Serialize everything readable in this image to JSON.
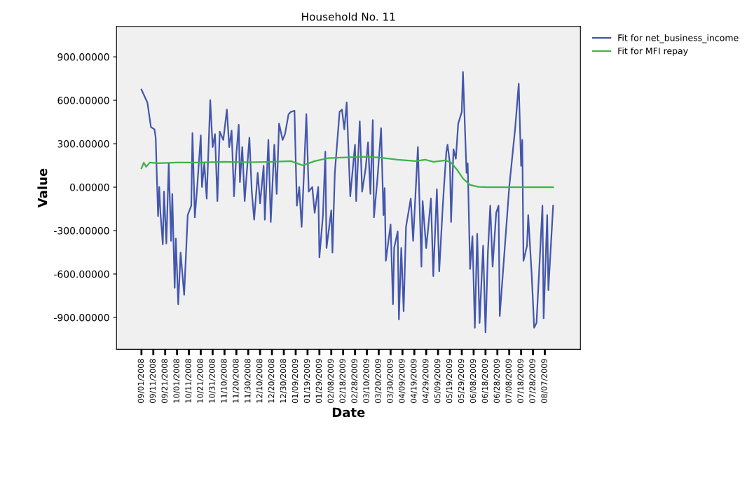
{
  "chart_data": {
    "type": "line",
    "title": "Household No. 11",
    "xlabel": "Date",
    "ylabel": "Value",
    "xlim": [
      "2008-08-11",
      "2009-09-06"
    ],
    "xticks": [
      {
        "value": "2008-09-01",
        "label": "09/01/2008"
      },
      {
        "value": "2008-09-11",
        "label": "09/11/2008"
      },
      {
        "value": "2008-09-21",
        "label": "09/21/2008"
      },
      {
        "value": "2008-10-01",
        "label": "10/01/2008"
      },
      {
        "value": "2008-10-11",
        "label": "10/11/2008"
      },
      {
        "value": "2008-10-21",
        "label": "10/21/2008"
      },
      {
        "value": "2008-10-31",
        "label": "10/31/2008"
      },
      {
        "value": "2008-11-10",
        "label": "11/10/2008"
      },
      {
        "value": "2008-11-20",
        "label": "11/20/2008"
      },
      {
        "value": "2008-11-30",
        "label": "11/30/2008"
      },
      {
        "value": "2008-12-10",
        "label": "12/10/2008"
      },
      {
        "value": "2008-12-20",
        "label": "12/20/2008"
      },
      {
        "value": "2008-12-30",
        "label": "12/30/2008"
      },
      {
        "value": "2009-01-09",
        "label": "01/09/2009"
      },
      {
        "value": "2009-01-19",
        "label": "01/19/2009"
      },
      {
        "value": "2009-01-29",
        "label": "01/29/2009"
      },
      {
        "value": "2009-02-08",
        "label": "02/08/2009"
      },
      {
        "value": "2009-02-18",
        "label": "02/18/2009"
      },
      {
        "value": "2009-02-28",
        "label": "02/28/2009"
      },
      {
        "value": "2009-03-10",
        "label": "03/10/2009"
      },
      {
        "value": "2009-03-20",
        "label": "03/20/2009"
      },
      {
        "value": "2009-03-30",
        "label": "03/30/2009"
      },
      {
        "value": "2009-04-09",
        "label": "04/09/2009"
      },
      {
        "value": "2009-04-19",
        "label": "04/19/2009"
      },
      {
        "value": "2009-04-29",
        "label": "04/29/2009"
      },
      {
        "value": "2009-05-09",
        "label": "05/09/2009"
      },
      {
        "value": "2009-05-19",
        "label": "05/19/2009"
      },
      {
        "value": "2009-05-29",
        "label": "05/29/2009"
      },
      {
        "value": "2009-06-08",
        "label": "06/08/2009"
      },
      {
        "value": "2009-06-18",
        "label": "06/18/2009"
      },
      {
        "value": "2009-06-28",
        "label": "06/28/2009"
      },
      {
        "value": "2009-07-08",
        "label": "07/08/2009"
      },
      {
        "value": "2009-07-18",
        "label": "07/18/2009"
      },
      {
        "value": "2009-07-28",
        "label": "07/28/2009"
      },
      {
        "value": "2009-08-07",
        "label": "08/07/2009"
      }
    ],
    "ylim": [
      -1120,
      1110
    ],
    "yticks": [
      {
        "value": 900,
        "label": "900.00000"
      },
      {
        "value": 600,
        "label": "600.00000"
      },
      {
        "value": 300,
        "label": "300.00000"
      },
      {
        "value": 0,
        "label": "0.00000"
      },
      {
        "value": -300,
        "label": "-300.00000"
      },
      {
        "value": -600,
        "label": "-600.00000"
      },
      {
        "value": -900,
        "label": "-900.00000"
      }
    ],
    "grid": false,
    "legend": "top right",
    "marker": "none",
    "line_style": "solid",
    "series": [
      {
        "name": "Fit for net_business_income",
        "color": "#4457ad",
        "x": [
          "2008-09-01",
          "2008-09-06",
          "2008-09-09",
          "2008-09-12",
          "2008-09-13",
          "2008-09-15",
          "2008-09-16",
          "2008-09-17",
          "2008-09-19",
          "2008-09-20",
          "2008-09-22",
          "2008-09-24",
          "2008-09-26",
          "2008-09-27",
          "2008-09-29",
          "2008-09-30",
          "2008-10-02",
          "2008-10-04",
          "2008-10-07",
          "2008-10-10",
          "2008-10-13",
          "2008-10-14",
          "2008-10-16",
          "2008-10-18",
          "2008-10-21",
          "2008-10-22",
          "2008-10-24",
          "2008-10-26",
          "2008-10-29",
          "2008-10-31",
          "2008-11-02",
          "2008-11-04",
          "2008-11-06",
          "2008-11-09",
          "2008-11-12",
          "2008-11-14",
          "2008-11-16",
          "2008-11-18",
          "2008-11-20",
          "2008-11-22",
          "2008-11-23",
          "2008-11-25",
          "2008-11-27",
          "2008-12-01",
          "2008-12-03",
          "2008-12-05",
          "2008-12-08",
          "2008-12-10",
          "2008-12-13",
          "2008-12-14",
          "2008-12-17",
          "2008-12-19",
          "2008-12-22",
          "2008-12-24",
          "2008-12-26",
          "2008-12-29",
          "2008-12-31",
          "2009-01-03",
          "2009-01-05",
          "2009-01-08",
          "2009-01-10",
          "2009-01-12",
          "2009-01-14",
          "2009-01-16",
          "2009-01-18",
          "2009-01-20",
          "2009-01-23",
          "2009-01-25",
          "2009-01-28",
          "2009-01-29",
          "2009-02-01",
          "2009-02-03",
          "2009-02-04",
          "2009-02-08",
          "2009-02-09",
          "2009-02-11",
          "2009-02-15",
          "2009-02-17",
          "2009-02-19",
          "2009-02-21",
          "2009-02-24",
          "2009-02-28",
          "2009-03-01",
          "2009-03-04",
          "2009-03-06",
          "2009-03-09",
          "2009-03-11",
          "2009-03-13",
          "2009-03-15",
          "2009-03-16",
          "2009-03-19",
          "2009-03-22",
          "2009-03-24",
          "2009-03-25",
          "2009-03-26",
          "2009-03-30",
          "2009-04-01",
          "2009-04-02",
          "2009-04-05",
          "2009-04-06",
          "2009-04-08",
          "2009-04-10",
          "2009-04-12",
          "2009-04-16",
          "2009-04-18",
          "2009-04-22",
          "2009-04-25",
          "2009-04-26",
          "2009-04-29",
          "2009-05-01",
          "2009-05-03",
          "2009-05-05",
          "2009-05-08",
          "2009-05-10",
          "2009-05-13",
          "2009-05-14",
          "2009-05-16",
          "2009-05-17",
          "2009-05-19",
          "2009-05-20",
          "2009-05-22",
          "2009-05-24",
          "2009-05-26",
          "2009-05-29",
          "2009-05-30",
          "2009-06-02",
          "2009-06-03",
          "2009-06-05",
          "2009-06-07",
          "2009-06-09",
          "2009-06-11",
          "2009-06-13",
          "2009-06-16",
          "2009-06-18",
          "2009-06-20",
          "2009-06-22",
          "2009-06-24",
          "2009-06-27",
          "2009-06-29",
          "2009-06-30",
          "2009-07-08",
          "2009-07-13",
          "2009-07-16",
          "2009-07-18",
          "2009-07-19",
          "2009-07-20",
          "2009-07-23",
          "2009-07-24",
          "2009-07-27",
          "2009-07-29",
          "2009-07-31",
          "2009-08-02",
          "2009-08-05",
          "2009-08-06",
          "2009-08-09",
          "2009-08-10",
          "2009-08-14"
        ],
        "values": [
          674,
          585,
          415,
          399,
          342,
          -201,
          1,
          -177,
          -395,
          -31,
          -389,
          164,
          -371,
          -47,
          -695,
          -355,
          -809,
          -452,
          -744,
          -193,
          -128,
          374,
          -209,
          1,
          358,
          1,
          164,
          -79,
          601,
          277,
          366,
          -96,
          383,
          326,
          536,
          277,
          391,
          -63,
          228,
          431,
          34,
          277,
          -96,
          342,
          -31,
          -225,
          99,
          -112,
          147,
          -225,
          326,
          -241,
          293,
          -47,
          439,
          326,
          366,
          504,
          520,
          528,
          -128,
          1,
          -274,
          99,
          504,
          -31,
          1,
          -177,
          1,
          -485,
          -193,
          245,
          -420,
          -160,
          -452,
          99,
          520,
          536,
          399,
          585,
          -63,
          293,
          -96,
          455,
          -31,
          131,
          310,
          -47,
          463,
          -209,
          67,
          407,
          -193,
          -6,
          -509,
          -258,
          -809,
          -420,
          -306,
          -914,
          -420,
          -857,
          -274,
          -79,
          -371,
          277,
          -549,
          -96,
          -420,
          -258,
          -79,
          -614,
          -15,
          -582,
          -128,
          1,
          245,
          293,
          164,
          -241,
          261,
          196,
          439,
          520,
          796,
          99,
          164,
          -565,
          -339,
          -971,
          -322,
          -938,
          -404,
          -1003,
          -452,
          -128,
          -549,
          -177,
          -128,
          -890,
          1,
          407,
          715,
          147,
          326,
          -509,
          -404,
          -193,
          -614,
          -971,
          -938,
          -614,
          -128,
          -906,
          -193,
          -711,
          -128
        ]
      },
      {
        "name": "Fit for MFI repay",
        "color": "#3db34a",
        "x": [
          "2008-09-01",
          "2008-09-03",
          "2008-09-05",
          "2008-09-08",
          "2008-09-15",
          "2008-10-01",
          "2008-10-20",
          "2008-11-10",
          "2008-12-01",
          "2008-12-20",
          "2009-01-05",
          "2009-01-15",
          "2009-01-25",
          "2009-02-05",
          "2009-02-20",
          "2009-03-05",
          "2009-03-20",
          "2009-04-05",
          "2009-04-20",
          "2009-04-28",
          "2009-05-05",
          "2009-05-15",
          "2009-05-20",
          "2009-05-25",
          "2009-05-30",
          "2009-06-05",
          "2009-06-12",
          "2009-06-20",
          "2009-07-10",
          "2009-08-14"
        ],
        "values": [
          130,
          170,
          140,
          170,
          165,
          170,
          170,
          175,
          172,
          175,
          180,
          150,
          180,
          200,
          205,
          210,
          205,
          190,
          180,
          190,
          175,
          185,
          170,
          120,
          60,
          15,
          2,
          0,
          0,
          0
        ]
      }
    ]
  }
}
